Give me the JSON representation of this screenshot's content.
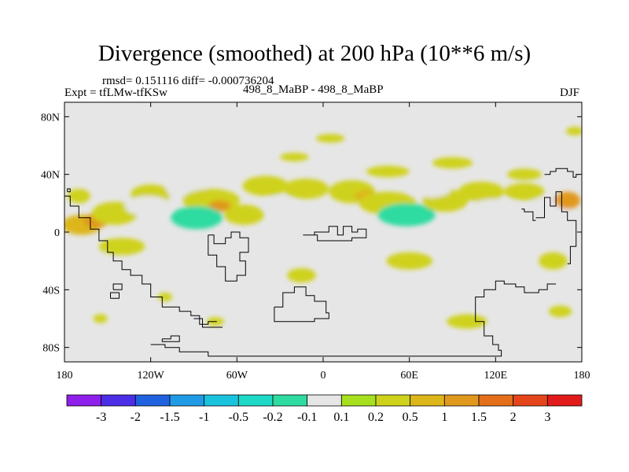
{
  "chart_data": {
    "type": "heatmap",
    "title": "Divergence (smoothed) at 200 hPa (10**6 m/s)",
    "stats_line": "rmsd= 0.151116 diff= -0.000736204",
    "experiment": "Expt = tfLMw-tfKSw",
    "center_label": "498_8_MaBP - 498_8_MaBP",
    "season": "DJF",
    "xlim": [
      -180,
      180
    ],
    "ylim": [
      -90,
      90
    ],
    "x_ticks": [
      {
        "value": -180,
        "label": "180"
      },
      {
        "value": -120,
        "label": "120W"
      },
      {
        "value": -60,
        "label": "60W"
      },
      {
        "value": 0,
        "label": "0"
      },
      {
        "value": 60,
        "label": "60E"
      },
      {
        "value": 120,
        "label": "120E"
      },
      {
        "value": 180,
        "label": "180"
      }
    ],
    "y_ticks": [
      {
        "value": 80,
        "label": "80N"
      },
      {
        "value": 40,
        "label": "40N"
      },
      {
        "value": 0,
        "label": "0"
      },
      {
        "value": -40,
        "label": "40S"
      },
      {
        "value": -80,
        "label": "80S"
      }
    ],
    "colorbar": {
      "colors": [
        "#8f1fea",
        "#4c2ee6",
        "#1f62e0",
        "#1f9be6",
        "#19c3de",
        "#1ed9c6",
        "#2edba0",
        "#e6e6e6",
        "#a6e01f",
        "#cfd21a",
        "#ddb61a",
        "#e0991c",
        "#e36f1a",
        "#e5451a",
        "#e11a1a"
      ],
      "labels": [
        "-3",
        "-2",
        "-1.5",
        "-1",
        "-0.5",
        "-0.2",
        "-0.1",
        "0.1",
        "0.2",
        "0.5",
        "1",
        "1.5",
        "2",
        "3"
      ]
    },
    "anomalies": [
      {
        "lon": -168,
        "lat": 5,
        "rlon": 14,
        "rlat": 7,
        "value": 0.5
      },
      {
        "lon": -158,
        "lat": 8,
        "rlon": 9,
        "rlat": 5,
        "value": 1.0
      },
      {
        "lon": -145,
        "lat": 13,
        "rlon": 16,
        "rlat": 8,
        "value": 0.2
      },
      {
        "lon": -120,
        "lat": 26,
        "rlon": 14,
        "rlat": 7,
        "value": 0.2
      },
      {
        "lon": -122,
        "lat": 18,
        "rlon": 16,
        "rlat": 7,
        "value": -0.1
      },
      {
        "lon": -95,
        "lat": 30,
        "rlon": 14,
        "rlat": 8,
        "value": -0.1
      },
      {
        "lon": -78,
        "lat": 22,
        "rlon": 20,
        "rlat": 8,
        "value": 0.2
      },
      {
        "lon": -72,
        "lat": 18,
        "rlon": 8,
        "rlat": 4,
        "value": 1.0
      },
      {
        "lon": -88,
        "lat": 10,
        "rlon": 18,
        "rlat": 8,
        "value": -0.2
      },
      {
        "lon": -55,
        "lat": 12,
        "rlon": 14,
        "rlat": 7,
        "value": 0.2
      },
      {
        "lon": -40,
        "lat": 32,
        "rlon": 16,
        "rlat": 7,
        "value": 0.2
      },
      {
        "lon": -30,
        "lat": 18,
        "rlon": 12,
        "rlat": 7,
        "value": -0.1
      },
      {
        "lon": -12,
        "lat": 30,
        "rlon": 16,
        "rlat": 7,
        "value": 0.2
      },
      {
        "lon": 20,
        "lat": 28,
        "rlon": 16,
        "rlat": 8,
        "value": 0.2
      },
      {
        "lon": 30,
        "lat": 25,
        "rlon": 8,
        "rlat": 4,
        "value": 0.5
      },
      {
        "lon": 45,
        "lat": 20,
        "rlon": 20,
        "rlat": 8,
        "value": 0.2
      },
      {
        "lon": 58,
        "lat": 12,
        "rlon": 20,
        "rlat": 8,
        "value": -0.2
      },
      {
        "lon": 85,
        "lat": 22,
        "rlon": 16,
        "rlat": 8,
        "value": 0.2
      },
      {
        "lon": 75,
        "lat": 30,
        "rlon": 14,
        "rlat": 6,
        "value": -0.1
      },
      {
        "lon": 110,
        "lat": 28,
        "rlon": 16,
        "rlat": 7,
        "value": 0.2
      },
      {
        "lon": 120,
        "lat": 16,
        "rlon": 18,
        "rlat": 7,
        "value": -0.1
      },
      {
        "lon": 140,
        "lat": 28,
        "rlon": 14,
        "rlat": 6,
        "value": 0.2
      },
      {
        "lon": 158,
        "lat": 18,
        "rlon": 14,
        "rlat": 7,
        "value": -0.1
      },
      {
        "lon": 170,
        "lat": 22,
        "rlon": 9,
        "rlat": 6,
        "value": 1.0
      },
      {
        "lon": 45,
        "lat": 42,
        "rlon": 15,
        "rlat": 4,
        "value": 0.2
      },
      {
        "lon": 90,
        "lat": 48,
        "rlon": 14,
        "rlat": 4,
        "value": 0.2
      },
      {
        "lon": 140,
        "lat": 40,
        "rlon": 12,
        "rlat": 4,
        "value": 0.2
      },
      {
        "lon": 5,
        "lat": 65,
        "rlon": 10,
        "rlat": 3,
        "value": 0.2
      },
      {
        "lon": 175,
        "lat": 70,
        "rlon": 6,
        "rlat": 3,
        "value": 0.2
      },
      {
        "lon": -20,
        "lat": 52,
        "rlon": 10,
        "rlat": 3,
        "value": 0.2
      },
      {
        "lon": -170,
        "lat": 25,
        "rlon": 8,
        "rlat": 5,
        "value": 0.2
      },
      {
        "lon": -140,
        "lat": -10,
        "rlon": 16,
        "rlat": 6,
        "value": 0.2
      },
      {
        "lon": -80,
        "lat": -12,
        "rlon": 12,
        "rlat": 6,
        "value": -0.1
      },
      {
        "lon": -40,
        "lat": -15,
        "rlon": 14,
        "rlat": 6,
        "value": -0.1
      },
      {
        "lon": 10,
        "lat": -20,
        "rlon": 12,
        "rlat": 6,
        "value": -0.1
      },
      {
        "lon": 60,
        "lat": -20,
        "rlon": 16,
        "rlat": 6,
        "value": 0.2
      },
      {
        "lon": 110,
        "lat": -25,
        "rlon": 14,
        "rlat": 7,
        "value": -0.1
      },
      {
        "lon": 160,
        "lat": -20,
        "rlon": 10,
        "rlat": 6,
        "value": 0.2
      },
      {
        "lon": -15,
        "lat": -30,
        "rlon": 10,
        "rlat": 5,
        "value": 0.2
      },
      {
        "lon": 100,
        "lat": -62,
        "rlon": 14,
        "rlat": 5,
        "value": 0.2
      },
      {
        "lon": 85,
        "lat": -75,
        "rlon": 12,
        "rlat": 4,
        "value": -0.1
      },
      {
        "lon": 165,
        "lat": -55,
        "rlon": 8,
        "rlat": 4,
        "value": 0.2
      },
      {
        "lon": -155,
        "lat": -60,
        "rlon": 5,
        "rlat": 3,
        "value": 0.2
      },
      {
        "lon": -110,
        "lat": -45,
        "rlon": 5,
        "rlat": 3,
        "value": 0.2
      },
      {
        "lon": -75,
        "lat": -62,
        "rlon": 6,
        "rlat": 3,
        "value": 0.2
      }
    ],
    "coastlines": [
      [
        [
          -180,
          25
        ],
        [
          -176,
          25
        ],
        [
          -176,
          18
        ],
        [
          -170,
          18
        ],
        [
          -170,
          10
        ],
        [
          -162,
          10
        ],
        [
          -162,
          2
        ],
        [
          -156,
          2
        ],
        [
          -156,
          -6
        ],
        [
          -150,
          -6
        ],
        [
          -150,
          -14
        ],
        [
          -146,
          -14
        ],
        [
          -146,
          -20
        ],
        [
          -140,
          -20
        ],
        [
          -140,
          -26
        ],
        [
          -134,
          -26
        ],
        [
          -134,
          -30
        ],
        [
          -126,
          -30
        ],
        [
          -126,
          -36
        ],
        [
          -120,
          -36
        ],
        [
          -120,
          -45
        ],
        [
          -112,
          -45
        ],
        [
          -112,
          -52
        ],
        [
          -100,
          -52
        ],
        [
          -100,
          -55
        ],
        [
          -92,
          -55
        ],
        [
          -92,
          -58
        ],
        [
          -86,
          -58
        ],
        [
          -86,
          -64
        ],
        [
          -80,
          -64
        ],
        [
          -80,
          -62
        ],
        [
          -74,
          -62
        ]
      ],
      [
        [
          -80,
          -2
        ],
        [
          -76,
          -2
        ],
        [
          -76,
          -8
        ],
        [
          -68,
          -8
        ],
        [
          -68,
          -4
        ],
        [
          -64,
          -4
        ],
        [
          -64,
          0
        ],
        [
          -58,
          0
        ],
        [
          -58,
          -4
        ],
        [
          -52,
          -4
        ],
        [
          -52,
          -14
        ],
        [
          -58,
          -14
        ],
        [
          -58,
          -20
        ],
        [
          -54,
          -20
        ],
        [
          -54,
          -30
        ],
        [
          -60,
          -30
        ],
        [
          -60,
          -34
        ],
        [
          -68,
          -34
        ],
        [
          -68,
          -24
        ],
        [
          -74,
          -24
        ],
        [
          -74,
          -16
        ],
        [
          -80,
          -16
        ],
        [
          -80,
          -2
        ]
      ],
      [
        [
          -90,
          -60
        ],
        [
          -84,
          -60
        ],
        [
          -84,
          -66
        ],
        [
          -76,
          -66
        ],
        [
          -70,
          -66
        ]
      ],
      [
        [
          -14,
          -2
        ],
        [
          -6,
          -2
        ],
        [
          -6,
          0
        ],
        [
          4,
          0
        ],
        [
          4,
          4
        ],
        [
          10,
          4
        ],
        [
          10,
          -2
        ],
        [
          14,
          -2
        ],
        [
          14,
          4
        ],
        [
          20,
          4
        ],
        [
          20,
          0
        ],
        [
          24,
          0
        ],
        [
          24,
          2
        ],
        [
          30,
          2
        ],
        [
          30,
          -4
        ],
        [
          20,
          -4
        ],
        [
          20,
          -6
        ],
        [
          -4,
          -6
        ],
        [
          -4,
          -2
        ],
        [
          -14,
          -2
        ]
      ],
      [
        [
          -34,
          -52
        ],
        [
          -28,
          -52
        ],
        [
          -28,
          -42
        ],
        [
          -20,
          -42
        ],
        [
          -20,
          -38
        ],
        [
          -12,
          -38
        ],
        [
          -12,
          -44
        ],
        [
          -6,
          -44
        ],
        [
          -6,
          -48
        ],
        [
          2,
          -48
        ],
        [
          2,
          -56
        ],
        [
          4,
          -56
        ],
        [
          4,
          -60
        ],
        [
          -6,
          -60
        ],
        [
          -6,
          -62
        ],
        [
          -34,
          -62
        ],
        [
          -34,
          -52
        ]
      ],
      [
        [
          -120,
          -78
        ],
        [
          -110,
          -78
        ],
        [
          -110,
          -80
        ],
        [
          -100,
          -80
        ],
        [
          -100,
          -83
        ],
        [
          -80,
          -83
        ],
        [
          -80,
          -86
        ],
        [
          0,
          -86
        ],
        [
          60,
          -86
        ],
        [
          120,
          -86
        ],
        [
          124,
          -86
        ],
        [
          124,
          -82
        ],
        [
          122,
          -82
        ],
        [
          122,
          -78
        ],
        [
          118,
          -78
        ],
        [
          118,
          -72
        ],
        [
          112,
          -72
        ],
        [
          112,
          -62
        ],
        [
          106,
          -62
        ],
        [
          106,
          -45
        ],
        [
          112,
          -45
        ],
        [
          112,
          -40
        ],
        [
          120,
          -40
        ],
        [
          120,
          -34
        ],
        [
          126,
          -34
        ],
        [
          126,
          -36
        ],
        [
          134,
          -36
        ],
        [
          134,
          -38
        ],
        [
          140,
          -38
        ],
        [
          140,
          -42
        ],
        [
          150,
          -42
        ],
        [
          150,
          -40
        ],
        [
          156,
          -40
        ],
        [
          156,
          -36
        ],
        [
          162,
          -36
        ]
      ],
      [
        [
          154,
          40
        ],
        [
          158,
          40
        ],
        [
          158,
          42
        ],
        [
          162,
          42
        ],
        [
          162,
          44
        ],
        [
          170,
          44
        ],
        [
          170,
          42
        ],
        [
          174,
          42
        ],
        [
          174,
          38
        ],
        [
          176,
          38
        ],
        [
          176,
          40
        ],
        [
          178,
          40
        ]
      ],
      [
        [
          148,
          10
        ],
        [
          154,
          10
        ],
        [
          154,
          24
        ],
        [
          158,
          24
        ],
        [
          158,
          18
        ],
        [
          162,
          18
        ],
        [
          162,
          28
        ],
        [
          166,
          28
        ],
        [
          166,
          14
        ],
        [
          170,
          14
        ],
        [
          170,
          8
        ],
        [
          176,
          8
        ],
        [
          176,
          -10
        ],
        [
          172,
          -10
        ],
        [
          172,
          -22
        ],
        [
          170,
          -22
        ]
      ],
      [
        [
          138,
          16
        ],
        [
          140,
          16
        ],
        [
          140,
          14
        ],
        [
          146,
          14
        ],
        [
          146,
          8
        ],
        [
          148,
          8
        ]
      ],
      [
        [
          -146,
          -40
        ],
        [
          -140,
          -40
        ],
        [
          -140,
          -36
        ],
        [
          -146,
          -36
        ],
        [
          -146,
          -40
        ]
      ],
      [
        [
          -148,
          -46
        ],
        [
          -142,
          -46
        ],
        [
          -142,
          -42
        ],
        [
          -148,
          -42
        ],
        [
          -148,
          -46
        ]
      ],
      [
        [
          -112,
          -74
        ],
        [
          -106,
          -74
        ],
        [
          -106,
          -72
        ],
        [
          -100,
          -72
        ],
        [
          -100,
          -76
        ],
        [
          -112,
          -76
        ],
        [
          -112,
          -74
        ]
      ],
      [
        [
          -178,
          28
        ],
        [
          -176,
          28
        ],
        [
          -176,
          30
        ],
        [
          -178,
          30
        ],
        [
          -178,
          28
        ]
      ]
    ]
  }
}
